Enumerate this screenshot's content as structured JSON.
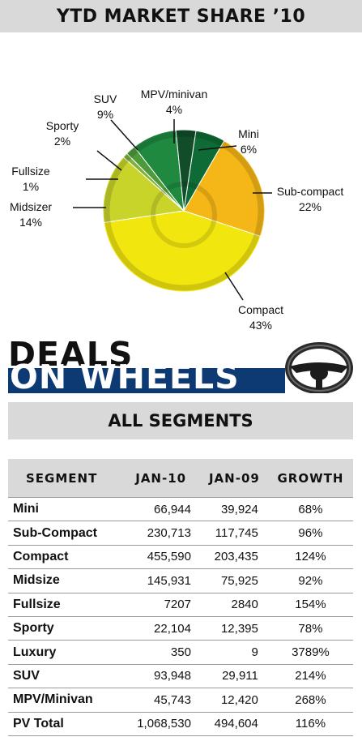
{
  "chart_data": {
    "type": "pie",
    "title": "YTD MARKET SHARE ’10",
    "slices": [
      {
        "name": "Mini",
        "value": 6,
        "label": "6%",
        "color": "#0f6b35"
      },
      {
        "name": "Sub-compact",
        "value": 22,
        "label": "22%",
        "color": "#f5b617"
      },
      {
        "name": "Compact",
        "value": 43,
        "label": "43%",
        "color": "#f2e60f"
      },
      {
        "name": "Midsizer",
        "value": 14,
        "label": "14%",
        "color": "#c9d42a"
      },
      {
        "name": "Fullsize",
        "value": 1,
        "label": "1%",
        "color": "#7fb238"
      },
      {
        "name": "Sporty",
        "value": 2,
        "label": "2%",
        "color": "#4d9a3a"
      },
      {
        "name": "SUV",
        "value": 9,
        "label": "9%",
        "color": "#1f8a3f"
      },
      {
        "name": "MPV/minivan",
        "value": 4,
        "label": "4%",
        "color": "#124d2a"
      }
    ]
  },
  "deals": {
    "line1": "DEALS",
    "line2": "ON WHEELS"
  },
  "segments_title": "ALL SEGMENTS",
  "table": {
    "headers": [
      "SEGMENT",
      "JAN-10",
      "JAN-09",
      "GROWTH"
    ],
    "rows": [
      [
        "Mini",
        "66,944",
        "39,924",
        "68%"
      ],
      [
        "Sub-Compact",
        "230,713",
        "117,745",
        "96%"
      ],
      [
        "Compact",
        "455,590",
        "203,435",
        "124%"
      ],
      [
        "Midsize",
        "145,931",
        "75,925",
        "92%"
      ],
      [
        "Fullsize",
        "7207",
        "2840",
        "154%"
      ],
      [
        "Sporty",
        "22,104",
        "12,395",
        "78%"
      ],
      [
        "Luxury",
        "350",
        "9",
        "3789%"
      ],
      [
        "SUV",
        "93,948",
        "29,911",
        "214%"
      ],
      [
        "MPV/Minivan",
        "45,743",
        "12,420",
        "268%"
      ],
      [
        "PV Total",
        "1,068,530",
        "494,604",
        "116%"
      ]
    ]
  }
}
